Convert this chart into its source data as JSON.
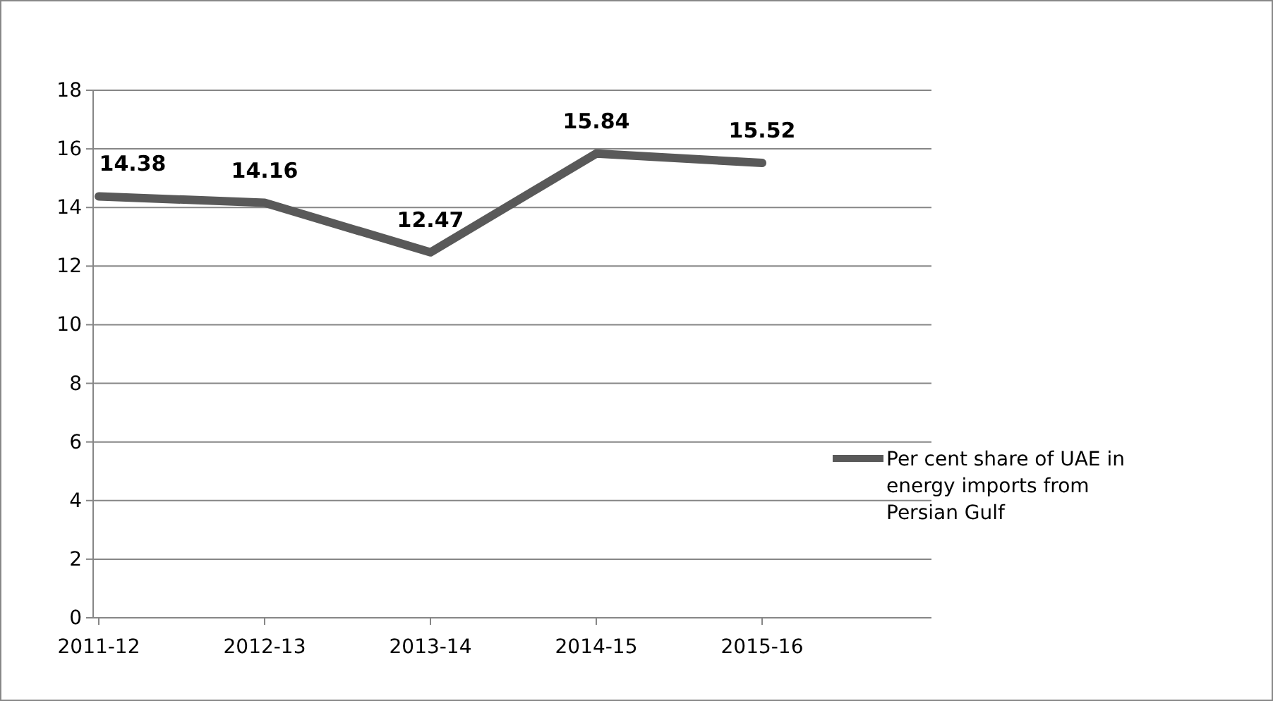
{
  "chart_data": {
    "type": "line",
    "categories": [
      "2011-12",
      "2012-13",
      "2013-14",
      "2014-15",
      "2015-16"
    ],
    "series": [
      {
        "name": "Per cent share of UAE in energy imports from Persian Gulf",
        "color": "#595959",
        "values": [
          14.38,
          14.16,
          12.47,
          15.84,
          15.52
        ]
      }
    ],
    "ylim": [
      0,
      18
    ],
    "yticks": [
      0,
      2,
      4,
      6,
      8,
      10,
      12,
      14,
      16,
      18
    ],
    "grid": "y",
    "legend": "right",
    "data_labels": true,
    "marker": "none",
    "line_style": "solid"
  }
}
